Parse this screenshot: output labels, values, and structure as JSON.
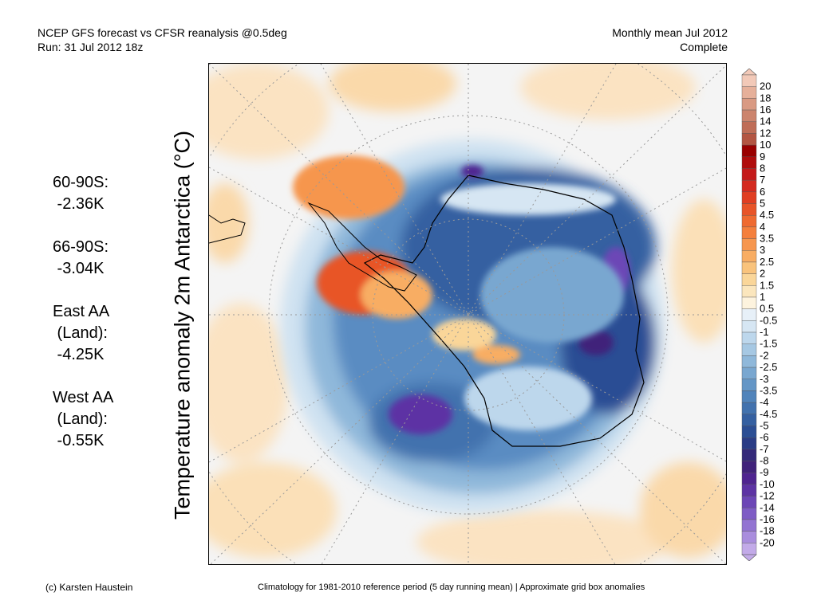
{
  "header": {
    "title_left_1": "NCEP GFS forecast vs CFSR reanalysis @0.5deg",
    "title_left_2": "Run: 31 Jul 2012 18z",
    "title_right_1": "Monthly mean Jul 2012",
    "title_right_2": "Complete"
  },
  "map": {
    "axis_title": "Temperature anomaly 2m Antarctica (°C)",
    "projection": "south polar stereographic"
  },
  "stats": [
    {
      "region_lines": [
        "60-90S:"
      ],
      "value": " -2.36K"
    },
    {
      "region_lines": [
        "66-90S:"
      ],
      "value": " -3.04K"
    },
    {
      "region_lines": [
        "East AA",
        " (Land):"
      ],
      "value": " -4.25K"
    },
    {
      "region_lines": [
        "West AA",
        " (Land):"
      ],
      "value": " -0.55K"
    }
  ],
  "footer": {
    "left": "(c) Karsten Haustein",
    "right": "Climatology for 1981-2010 reference period (5 day running mean) | Approximate grid box anomalies"
  },
  "colorbar": {
    "labels": [
      "20",
      "18",
      "16",
      "14",
      "12",
      "10",
      "9",
      "8",
      "7",
      "6",
      "5",
      "4.5",
      "4",
      "3.5",
      "3",
      "2.5",
      "2",
      "1.5",
      "1",
      "0.5",
      "-0.5",
      "-1",
      "-1.5",
      "-2",
      "-2.5",
      "-3",
      "-3.5",
      "-4",
      "-4.5",
      "-5",
      "-6",
      "-7",
      "-8",
      "-9",
      "-10",
      "-12",
      "-14",
      "-16",
      "-18",
      "-20"
    ],
    "colors": [
      "#f2c9b8",
      "#e6b09a",
      "#d99a83",
      "#cc846d",
      "#bf6d57",
      "#b35542",
      "#9a0000",
      "#b00d0d",
      "#c41a1a",
      "#d42a1f",
      "#e03e22",
      "#e85428",
      "#ef6a30",
      "#f47f3c",
      "#f6964e",
      "#f8ad63",
      "#f9c37c",
      "#fad699",
      "#fbe6bd",
      "#fdf3de",
      "#e7f0f8",
      "#d6e6f3",
      "#bdd7ec",
      "#a6c8e3",
      "#8fb8da",
      "#79a7d0",
      "#6496c6",
      "#5184bb",
      "#4272ae",
      "#3560a1",
      "#2b4e94",
      "#2a3c86",
      "#34297a",
      "#40227a",
      "#4f2490",
      "#5d33a4",
      "#6c46b6",
      "#7e5cc5",
      "#9374d2",
      "#a98ddd",
      "#c2aae8"
    ]
  },
  "colors": {
    "ocean_bg": "#f4f4f4",
    "coast": "#000000"
  }
}
